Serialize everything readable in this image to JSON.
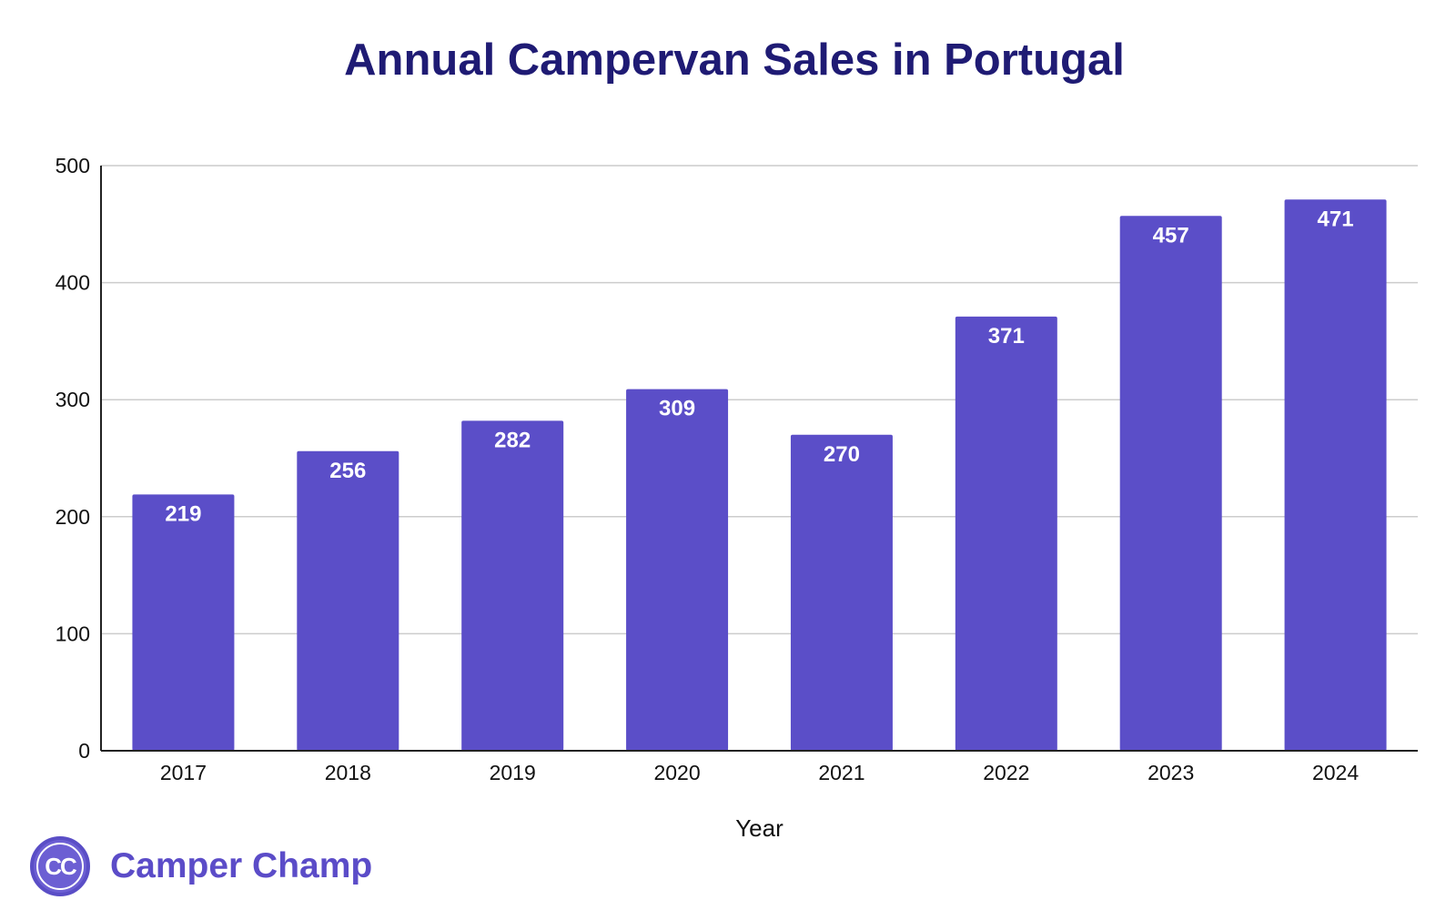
{
  "chart_data": {
    "type": "bar",
    "title": "Annual Campervan Sales in Portugal",
    "xlabel": "Year",
    "ylabel": "",
    "categories": [
      "2017",
      "2018",
      "2019",
      "2020",
      "2021",
      "2022",
      "2023",
      "2024"
    ],
    "values": [
      219,
      256,
      282,
      309,
      270,
      371,
      457,
      471
    ],
    "yticks": [
      0,
      100,
      200,
      300,
      400,
      500
    ],
    "ylim": [
      0,
      500
    ],
    "grid": true,
    "data_labels": true,
    "colors": {
      "bar": "#5b4ec8",
      "title": "#1f1b74",
      "grid": "#cccccc"
    }
  },
  "branding": {
    "logo_text": "CC",
    "name": "Camper Champ",
    "color": "#5b4cc8"
  }
}
